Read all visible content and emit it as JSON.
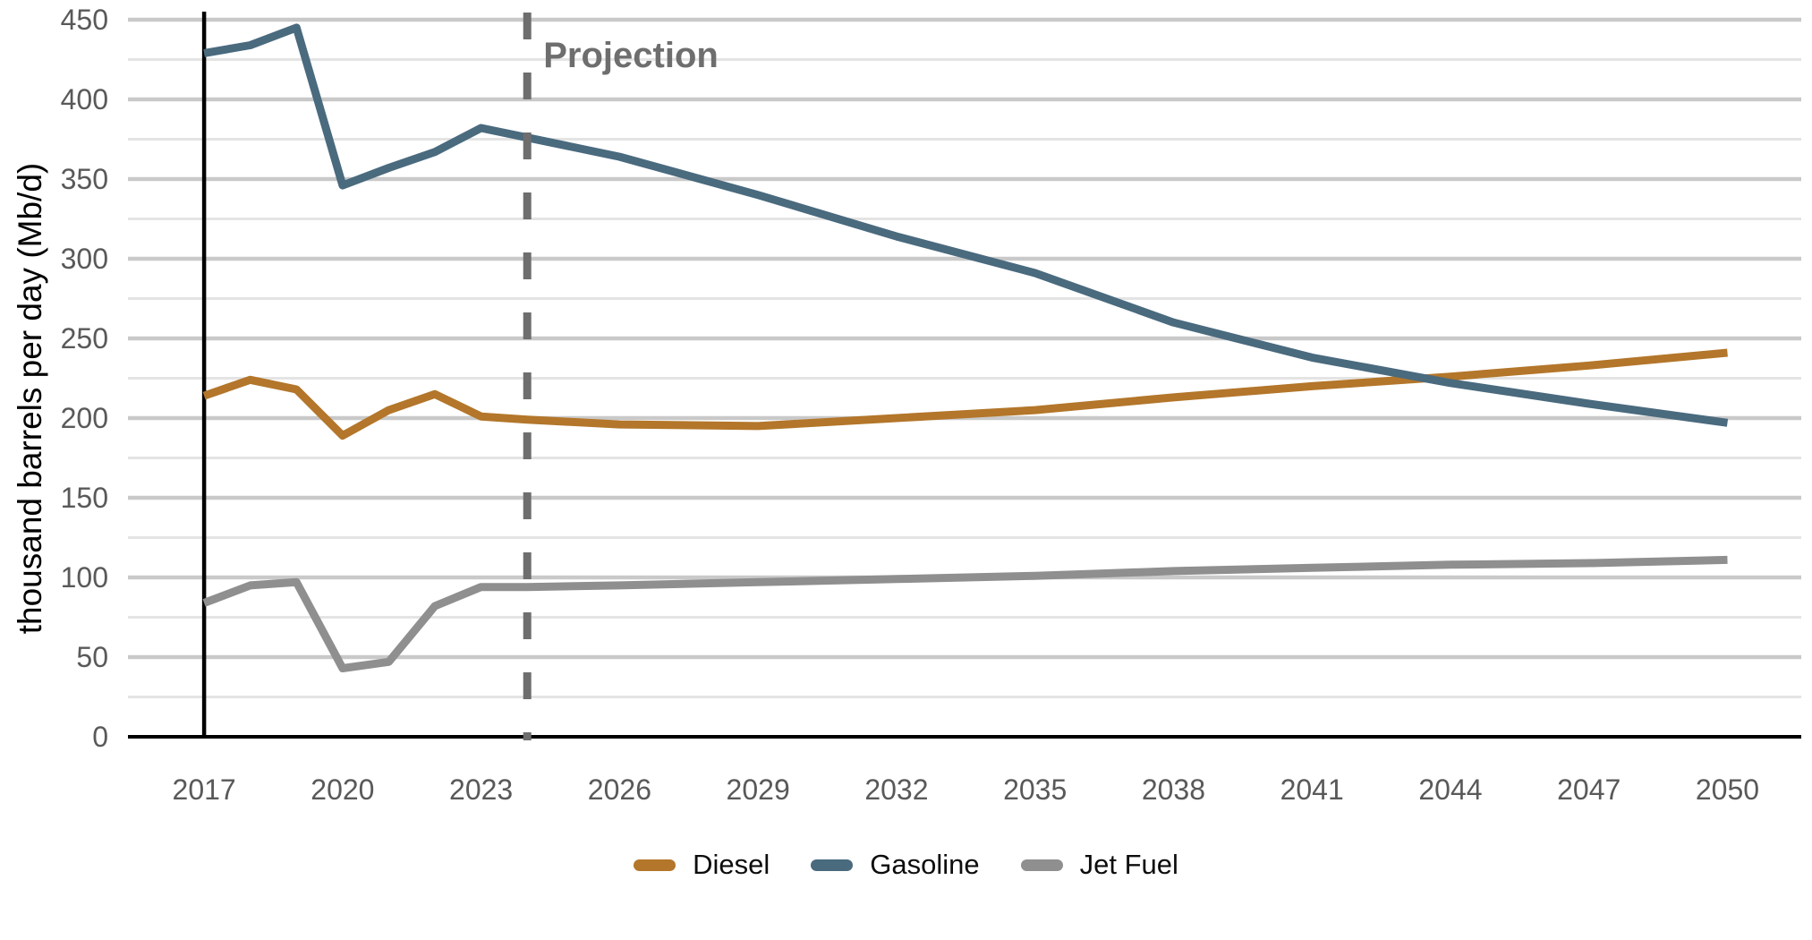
{
  "chart_data": {
    "type": "line",
    "title": "",
    "xlabel": "",
    "ylabel": "thousand barrels per day (Mb/d)",
    "ylim": [
      0,
      450
    ],
    "xlim": [
      2015.35,
      2051.6
    ],
    "yticks": [
      0,
      50,
      100,
      150,
      200,
      250,
      300,
      350,
      400,
      450
    ],
    "ytick_minor_step": 25,
    "xticks": [
      2017,
      2020,
      2023,
      2026,
      2029,
      2032,
      2035,
      2038,
      2041,
      2044,
      2047,
      2050
    ],
    "grid": "horizontal-only",
    "legend_position": "bottom-center",
    "annotations": {
      "projection_label": "Projection",
      "projection_year": 2024,
      "history_start_year": 2017
    },
    "series": [
      {
        "name": "Diesel",
        "color": "#b3762a",
        "years": [
          2017,
          2018,
          2019,
          2020,
          2021,
          2022,
          2023,
          2024,
          2026,
          2029,
          2032,
          2035,
          2038,
          2041,
          2044,
          2047,
          2050
        ],
        "values": [
          214,
          224,
          218,
          189,
          205,
          215,
          201,
          199,
          196,
          195,
          200,
          205,
          213,
          220,
          226,
          233,
          241
        ]
      },
      {
        "name": "Gasoline",
        "color": "#4a6a7e",
        "years": [
          2017,
          2018,
          2019,
          2020,
          2021,
          2022,
          2023,
          2024,
          2026,
          2029,
          2032,
          2035,
          2038,
          2041,
          2044,
          2047,
          2050
        ],
        "values": [
          429,
          434,
          445,
          346,
          357,
          367,
          382,
          376,
          364,
          340,
          314,
          291,
          260,
          238,
          222,
          209,
          197
        ]
      },
      {
        "name": "Jet Fuel",
        "color": "#8f8f8f",
        "years": [
          2017,
          2018,
          2019,
          2020,
          2021,
          2022,
          2023,
          2024,
          2026,
          2029,
          2032,
          2035,
          2038,
          2041,
          2044,
          2047,
          2050
        ],
        "values": [
          84,
          95,
          97,
          43,
          47,
          82,
          94,
          94,
          95,
          97,
          99,
          101,
          104,
          106,
          108,
          109,
          111
        ]
      }
    ],
    "colors": {
      "axis_line": "#000000",
      "history_line": "#000000",
      "grid_major": "#c9c9c9",
      "grid_minor": "#e4e4e4",
      "tick_label": "#595959",
      "projection_dash": "#6e6e6e"
    }
  }
}
